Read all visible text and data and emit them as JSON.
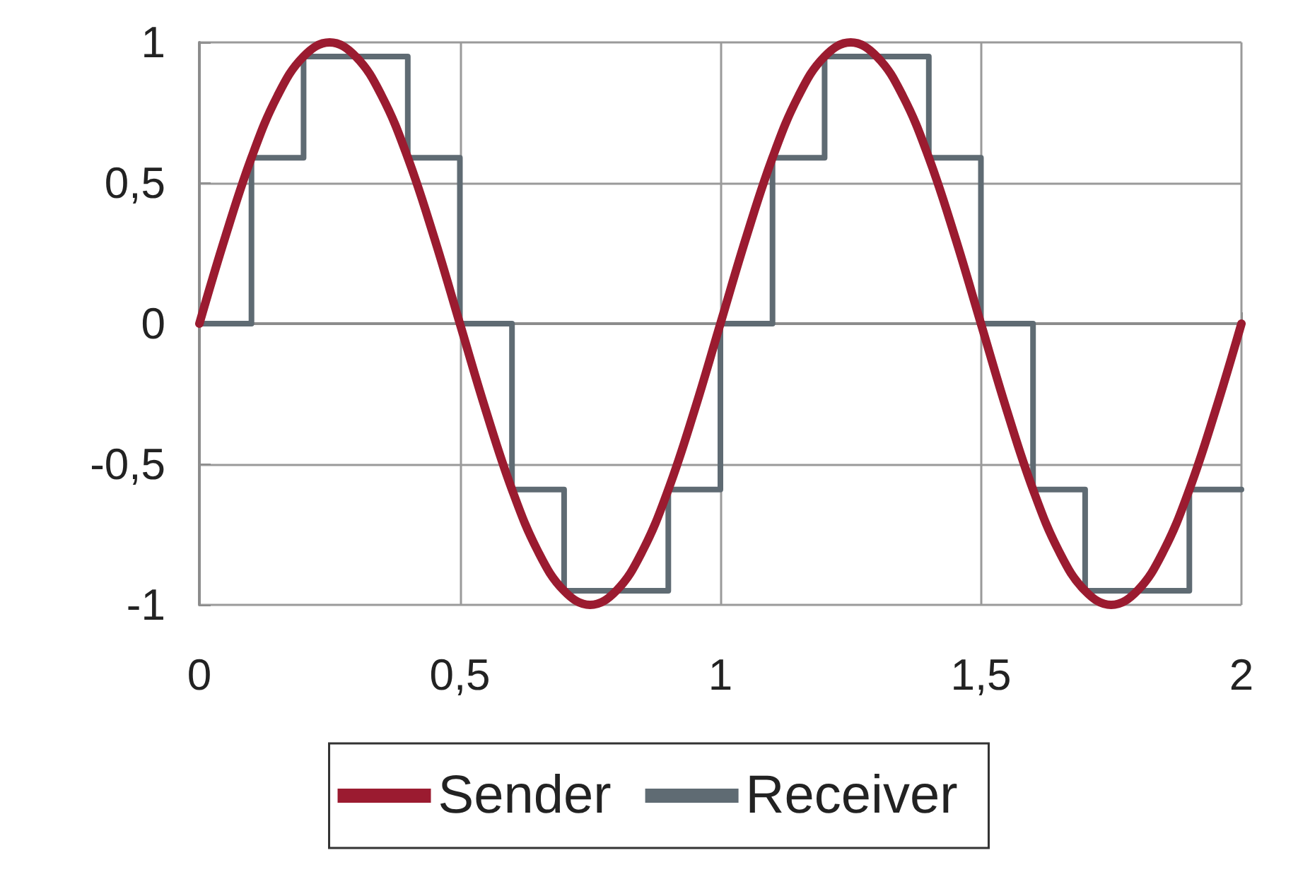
{
  "chart_data": {
    "type": "line",
    "x": [
      0,
      0.05,
      0.1,
      0.15,
      0.2,
      0.25,
      0.3,
      0.35,
      0.4,
      0.45,
      0.5,
      0.55,
      0.6,
      0.65,
      0.7,
      0.75,
      0.8,
      0.85,
      0.9,
      0.95,
      1,
      1.05,
      1.1,
      1.15,
      1.2,
      1.25,
      1.3,
      1.35,
      1.4,
      1.45,
      1.5,
      1.55,
      1.6,
      1.65,
      1.7,
      1.75,
      1.8,
      1.85,
      1.9,
      1.95,
      2
    ],
    "series": [
      {
        "name": "Sender",
        "color": "#9b1b30",
        "values": [
          0,
          0.31,
          0.59,
          0.81,
          0.95,
          1,
          0.95,
          0.81,
          0.59,
          0.31,
          0,
          -0.31,
          -0.59,
          -0.81,
          -0.95,
          -1,
          -0.95,
          -0.81,
          -0.59,
          -0.31,
          0,
          0.31,
          0.59,
          0.81,
          0.95,
          1,
          0.95,
          0.81,
          0.59,
          0.31,
          0,
          -0.31,
          -0.59,
          -0.81,
          -0.95,
          -1,
          -0.95,
          -0.81,
          -0.59,
          -0.31,
          0
        ]
      },
      {
        "name": "Receiver",
        "type": "step",
        "color": "#5f6b73",
        "x": [
          0,
          0.1,
          0.2,
          0.3,
          0.4,
          0.5,
          0.6,
          0.7,
          0.8,
          0.9,
          1,
          1.1,
          1.2,
          1.3,
          1.4,
          1.5,
          1.6,
          1.7,
          1.8,
          1.9,
          2
        ],
        "values": [
          0,
          0.59,
          0.95,
          0.95,
          0.59,
          0,
          -0.59,
          -0.95,
          -0.95,
          -0.59,
          0,
          0.59,
          0.95,
          0.95,
          0.59,
          0,
          -0.59,
          -0.95,
          -0.95,
          -0.59,
          -0.59
        ]
      }
    ],
    "xlim": [
      0,
      2
    ],
    "ylim": [
      -1,
      1
    ],
    "xticks": [
      0,
      {
        "value": 0.5,
        "label": "0,5"
      },
      1,
      {
        "value": 1.5,
        "label": "1,5"
      },
      2
    ],
    "yticks": [
      -1,
      {
        "value": -0.5,
        "label": "-0,5"
      },
      0,
      {
        "value": 0.5,
        "label": "0,5"
      },
      1
    ],
    "grid": true,
    "legend": "bottom",
    "marker": "none",
    "line_style": "solid"
  }
}
